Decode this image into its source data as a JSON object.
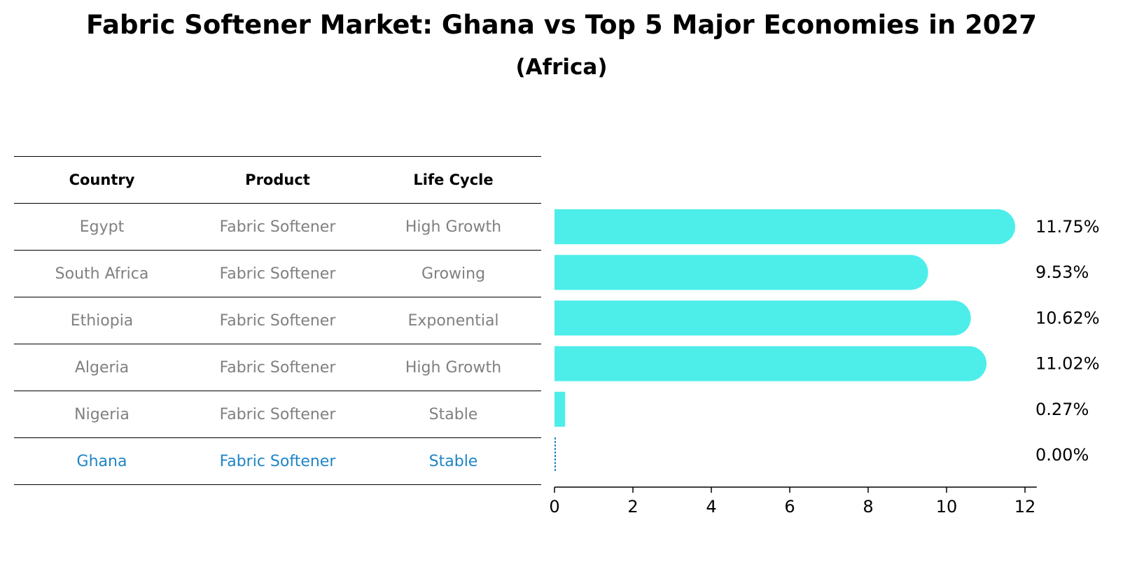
{
  "title": "Fabric Softener Market: Ghana vs Top 5 Major Economies in 2027",
  "subtitle": "(Africa)",
  "table": {
    "headers": [
      "Country",
      "Product",
      "Life Cycle"
    ],
    "rows": [
      {
        "country": "Egypt",
        "product": "Fabric Softener",
        "life_cycle": "High Growth"
      },
      {
        "country": "South Africa",
        "product": "Fabric Softener",
        "life_cycle": "Growing"
      },
      {
        "country": "Ethiopia",
        "product": "Fabric Softener",
        "life_cycle": "Exponential"
      },
      {
        "country": "Algeria",
        "product": "Fabric Softener",
        "life_cycle": "High Growth"
      },
      {
        "country": "Nigeria",
        "product": "Fabric Softener",
        "life_cycle": "Stable"
      },
      {
        "country": "Ghana",
        "product": "Fabric Softener",
        "life_cycle": "Stable"
      }
    ]
  },
  "chart_data": {
    "type": "bar",
    "orientation": "horizontal",
    "categories": [
      "Egypt",
      "South Africa",
      "Ethiopia",
      "Algeria",
      "Nigeria",
      "Ghana"
    ],
    "values": [
      11.75,
      9.53,
      10.62,
      11.02,
      0.27,
      0.0
    ],
    "value_labels": [
      "11.75%",
      "9.53%",
      "10.62%",
      "11.02%",
      "0.27%",
      "0.00%"
    ],
    "xlim": [
      0,
      12.3
    ],
    "xticks": [
      0,
      2,
      4,
      6,
      8,
      10,
      12
    ],
    "grid": false,
    "colors": {
      "bar": "#4deeea",
      "highlight": "#1f85c5",
      "muted_text": "#808080"
    }
  }
}
